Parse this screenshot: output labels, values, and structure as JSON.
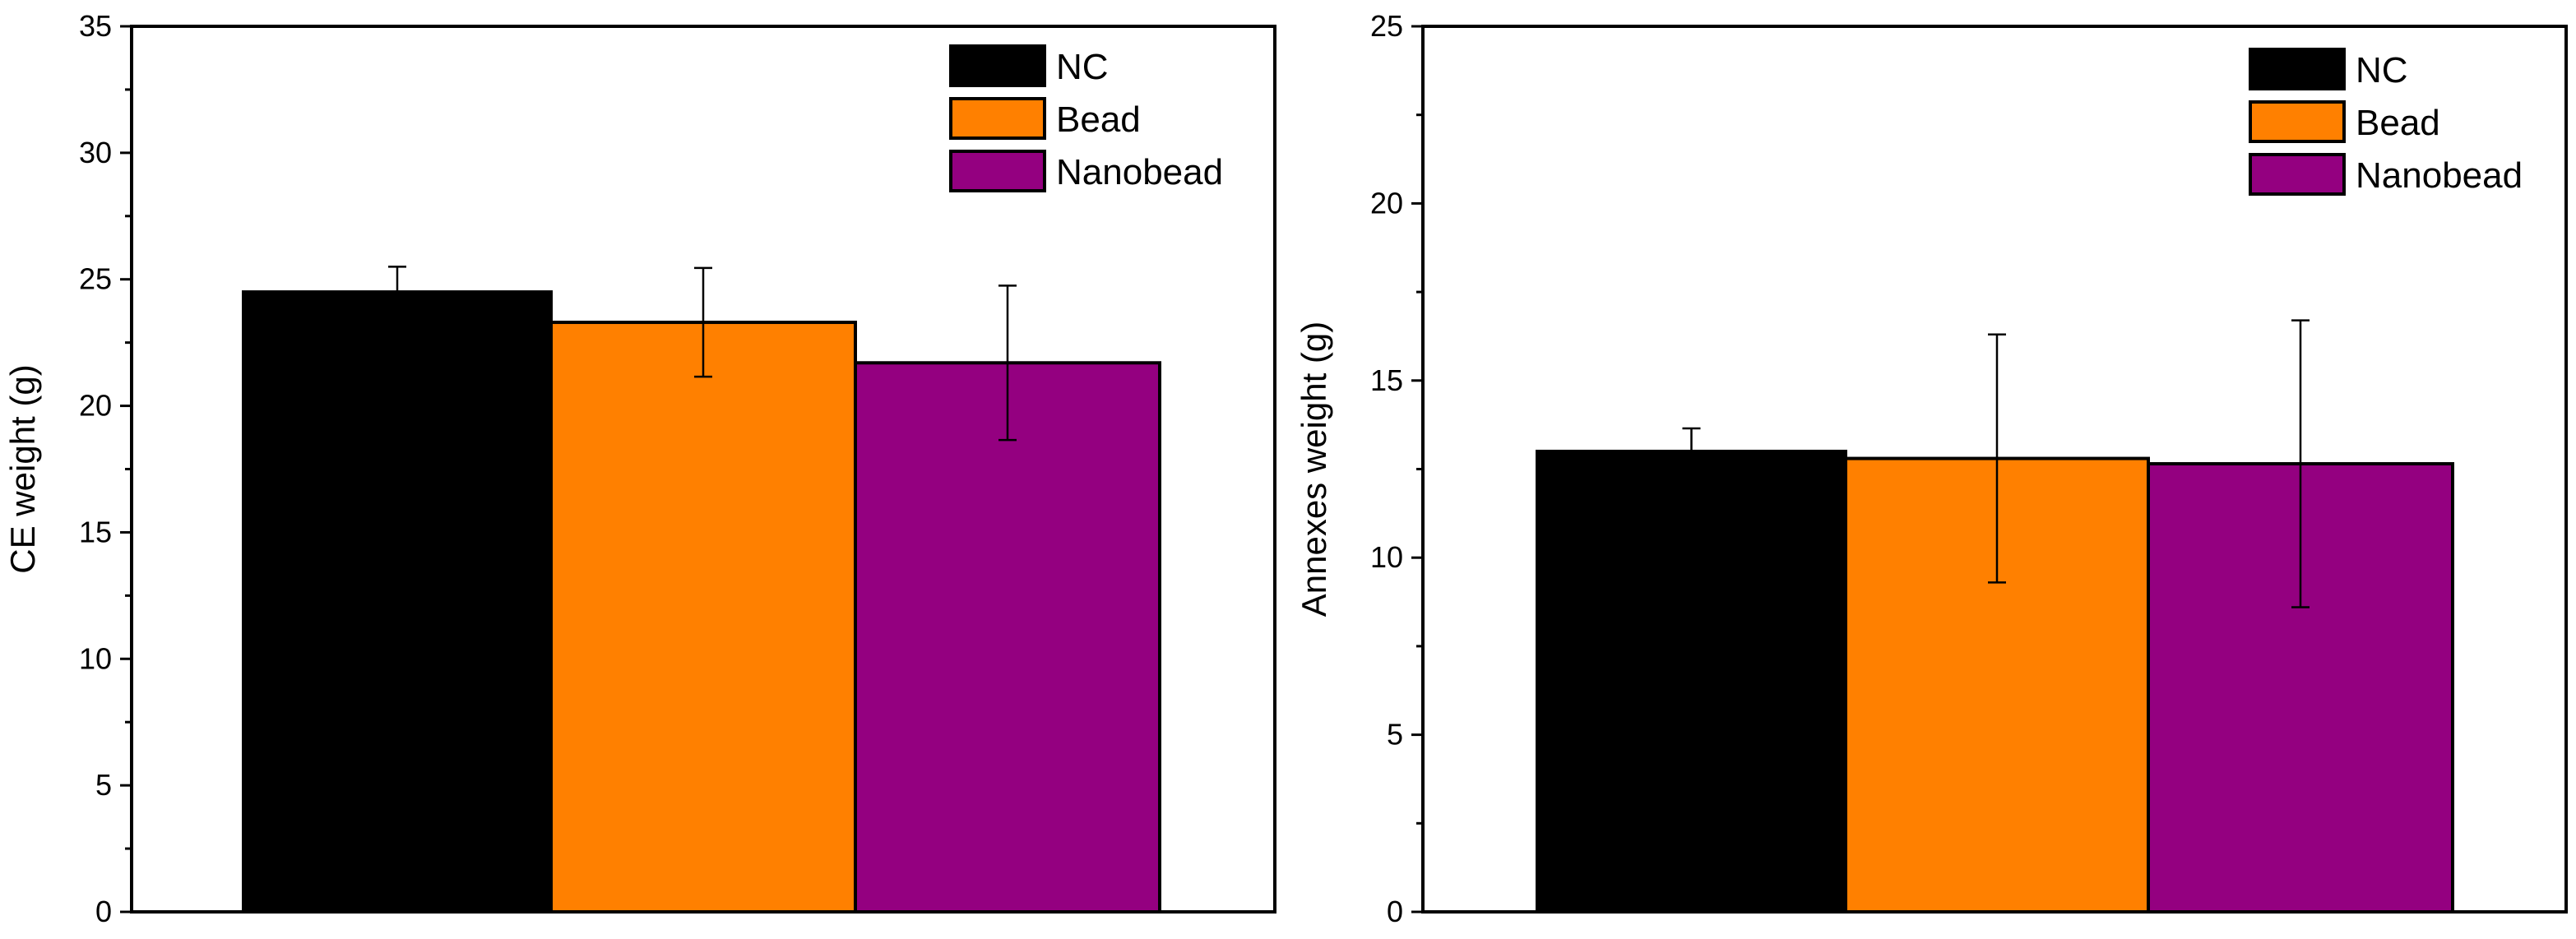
{
  "chart_data": [
    {
      "type": "bar",
      "title": "",
      "xlabel": "",
      "ylabel": "CE weight (g)",
      "ylim": [
        0,
        35
      ],
      "yticks": [
        "0",
        "5",
        "10",
        "15",
        "20",
        "25",
        "30",
        "35"
      ],
      "grid": false,
      "legend_position": "top-right",
      "series": [
        {
          "name": "NC",
          "value": 24.5,
          "error": 1.0,
          "color": "#000000"
        },
        {
          "name": "Bead",
          "value": 23.3,
          "error": 2.15,
          "color": "#FF8000"
        },
        {
          "name": "Nanobead",
          "value": 21.7,
          "error": 3.05,
          "color": "#940080"
        }
      ]
    },
    {
      "type": "bar",
      "title": "",
      "xlabel": "",
      "ylabel": "Annexes weight (g)",
      "ylim": [
        0,
        25
      ],
      "yticks": [
        "0",
        "5",
        "10",
        "15",
        "20",
        "25"
      ],
      "grid": false,
      "legend_position": "top-right",
      "series": [
        {
          "name": "NC",
          "value": 13.0,
          "error": 0.65,
          "color": "#000000"
        },
        {
          "name": "Bead",
          "value": 12.8,
          "error": 3.5,
          "color": "#FF8000"
        },
        {
          "name": "Nanobead",
          "value": 12.65,
          "error": 4.05,
          "color": "#940080"
        }
      ]
    }
  ]
}
